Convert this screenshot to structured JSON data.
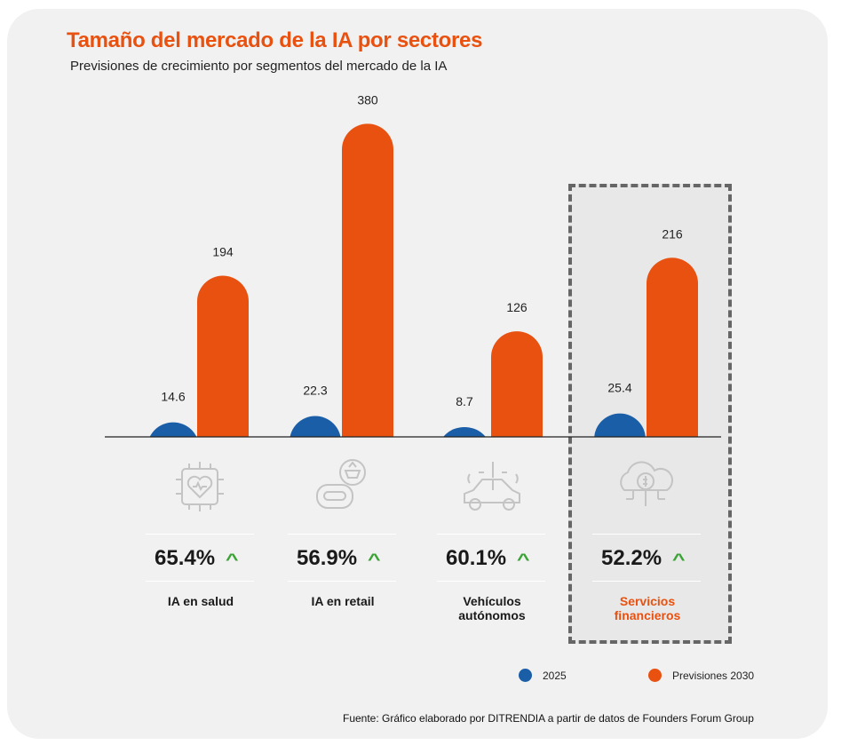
{
  "title": "Tamaño del mercado de la IA por sectores",
  "subtitle": "Previsiones de crecimiento por segmentos del mercado de la IA",
  "colors": {
    "2025": "#1b5ea8",
    "2030": "#e8510f",
    "growth": "#3aa336",
    "highlight_text": "#e8510f"
  },
  "chart_data": {
    "type": "bar",
    "categories": [
      "IA en salud",
      "IA en retail",
      "Vehículos autónomos",
      "Servicios financieros"
    ],
    "series": [
      {
        "name": "2025",
        "values": [
          14.6,
          22.3,
          8.7,
          25.4
        ],
        "labels": [
          "14.6",
          "22.3",
          "8.7",
          "25.4"
        ]
      },
      {
        "name": "Previsiones 2030",
        "values": [
          194,
          380,
          126,
          216
        ],
        "labels": [
          "194",
          "380",
          "126",
          "216"
        ]
      }
    ],
    "growth": [
      "65.4%",
      "56.9%",
      "60.1%",
      "52.2%"
    ],
    "icons": [
      "chip-heart-icon",
      "robot-basket-icon",
      "connected-car-icon",
      "cloud-money-icon"
    ],
    "highlighted": "Servicios financieros",
    "legend_position": "bottom-right",
    "grid": false
  },
  "labels": [
    [
      "IA en salud"
    ],
    [
      "IA en retail"
    ],
    [
      "Vehículos",
      "autónomos"
    ],
    [
      "Servicios",
      "financieros"
    ]
  ],
  "legend": [
    "2025",
    "Previsiones 2030"
  ],
  "source": "Fuente: Gráfico elaborado por DITRENDIA a partir de datos de Founders Forum Group"
}
